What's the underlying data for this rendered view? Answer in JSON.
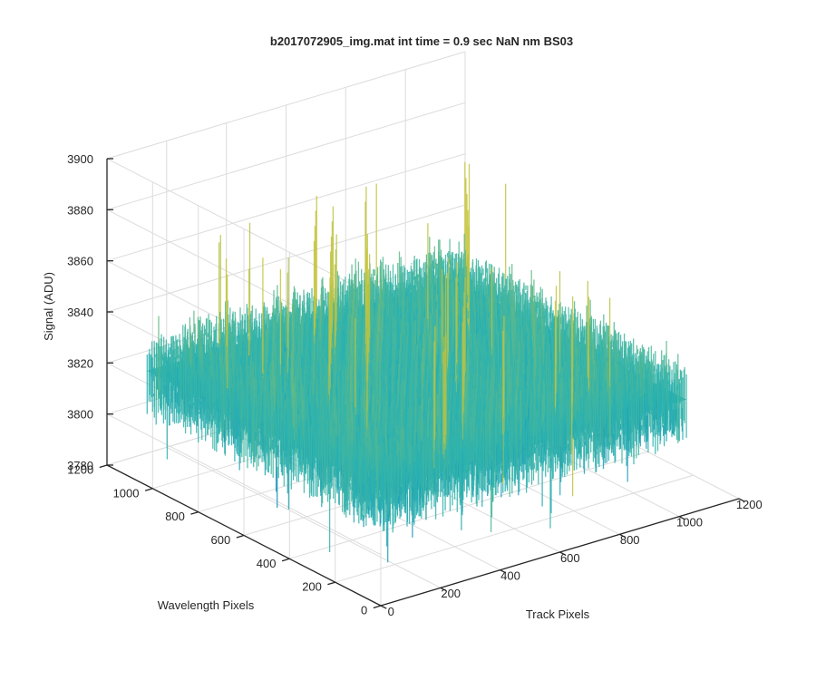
{
  "chart_data": {
    "type": "surface",
    "title": "b2017072905_img.mat int time = 0.9 sec  NaN nm BS03",
    "xlabel": "Track Pixels",
    "ylabel": "Wavelength Pixels",
    "zlabel": "Signal (ADU)",
    "xlim": [
      0,
      1200
    ],
    "ylim": [
      0,
      1200
    ],
    "zlim": [
      3780,
      3900
    ],
    "x_ticks": [
      "0",
      "200",
      "400",
      "600",
      "800",
      "1000",
      "1200"
    ],
    "y_ticks": [
      "0",
      "200",
      "400",
      "600",
      "800",
      "1000",
      "1200"
    ],
    "z_ticks": [
      "3780",
      "3800",
      "3820",
      "3840",
      "3860",
      "3880",
      "3900"
    ],
    "x_extent": [
      0,
      1024
    ],
    "y_extent": [
      0,
      1024
    ],
    "signal_mean": 3825,
    "signal_min": 3790,
    "signal_max": 3875,
    "grid": true,
    "colormap": "parula",
    "colors": {
      "low": "#0072bd",
      "mid": "#2cb3b0",
      "high": "#c8c43a",
      "axes": "#262626",
      "grid": "#dcdcdc"
    }
  }
}
